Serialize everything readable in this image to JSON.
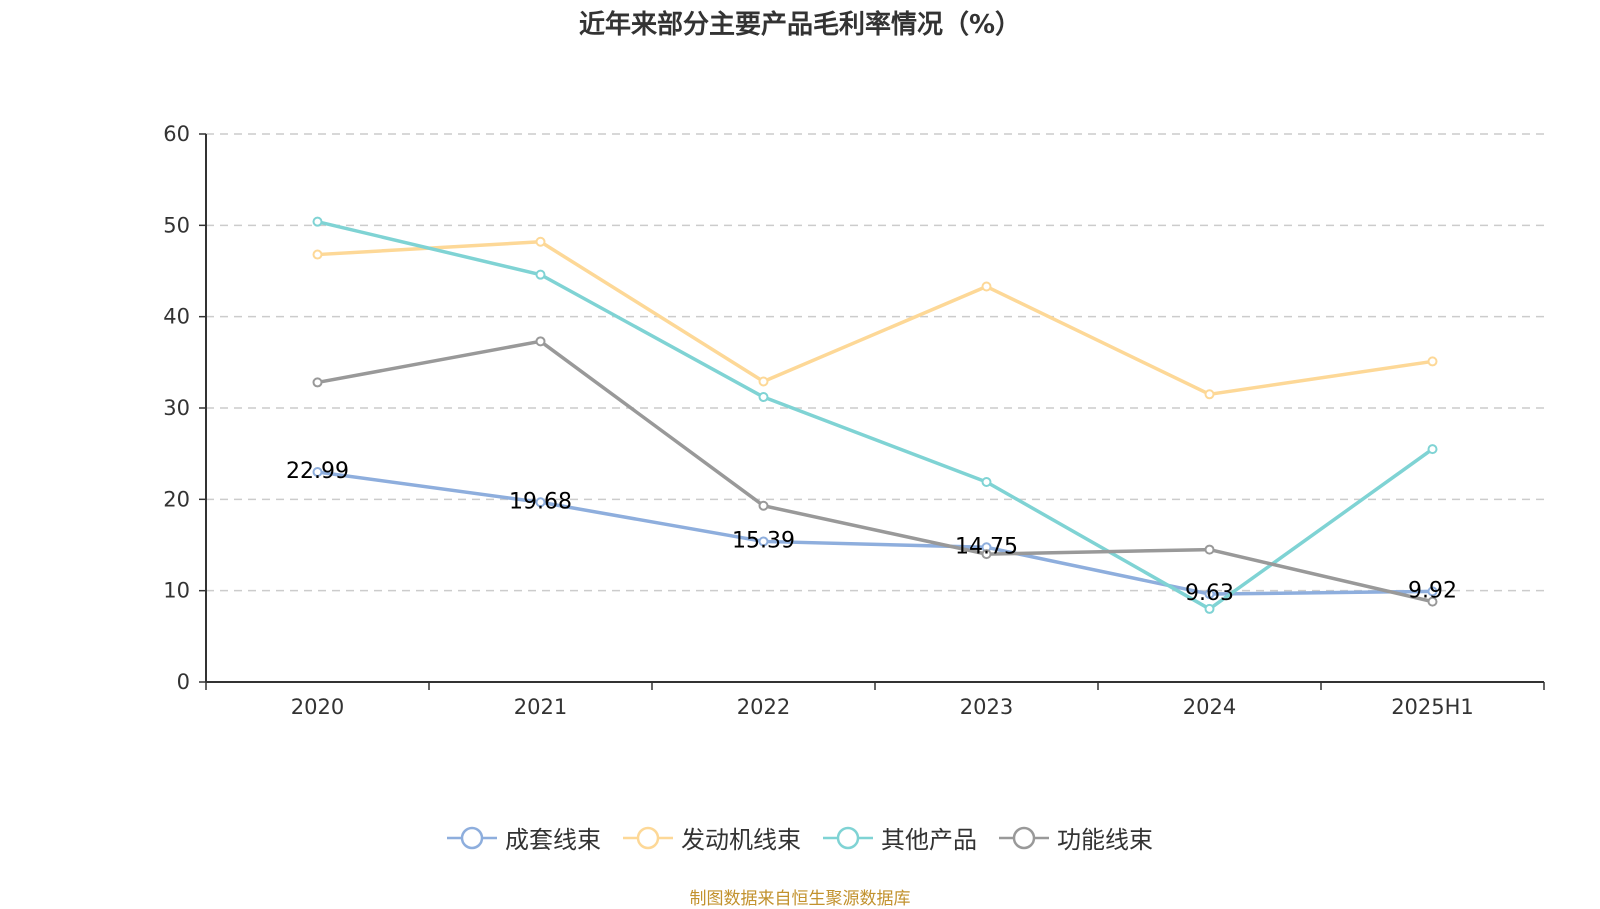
{
  "chart_data": {
    "type": "line",
    "title": "近年来部分主要产品毛利率情况（%）",
    "xlabel": "",
    "ylabel": "",
    "categories": [
      "2020",
      "2021",
      "2022",
      "2023",
      "2024",
      "2025H1"
    ],
    "ylim": [
      0,
      60
    ],
    "yticks": [
      0,
      10,
      20,
      30,
      40,
      50,
      60
    ],
    "grid": true,
    "legend_position": "bottom",
    "series": [
      {
        "name": "成套线束",
        "color": "#8eaedd",
        "values": [
          22.99,
          19.68,
          15.39,
          14.75,
          9.63,
          9.92
        ],
        "show_labels": true
      },
      {
        "name": "发动机线束",
        "color": "#fdd897",
        "values": [
          46.8,
          48.2,
          32.9,
          43.3,
          31.5,
          35.1
        ],
        "show_labels": false
      },
      {
        "name": "其他产品",
        "color": "#7fd3d4",
        "values": [
          50.4,
          44.6,
          31.2,
          21.9,
          8.0,
          25.5
        ],
        "show_labels": false
      },
      {
        "name": "功能线束",
        "color": "#999999",
        "values": [
          32.8,
          37.3,
          19.3,
          14.0,
          14.5,
          8.8
        ],
        "show_labels": false
      }
    ],
    "footer": "制图数据来自恒生聚源数据库"
  }
}
